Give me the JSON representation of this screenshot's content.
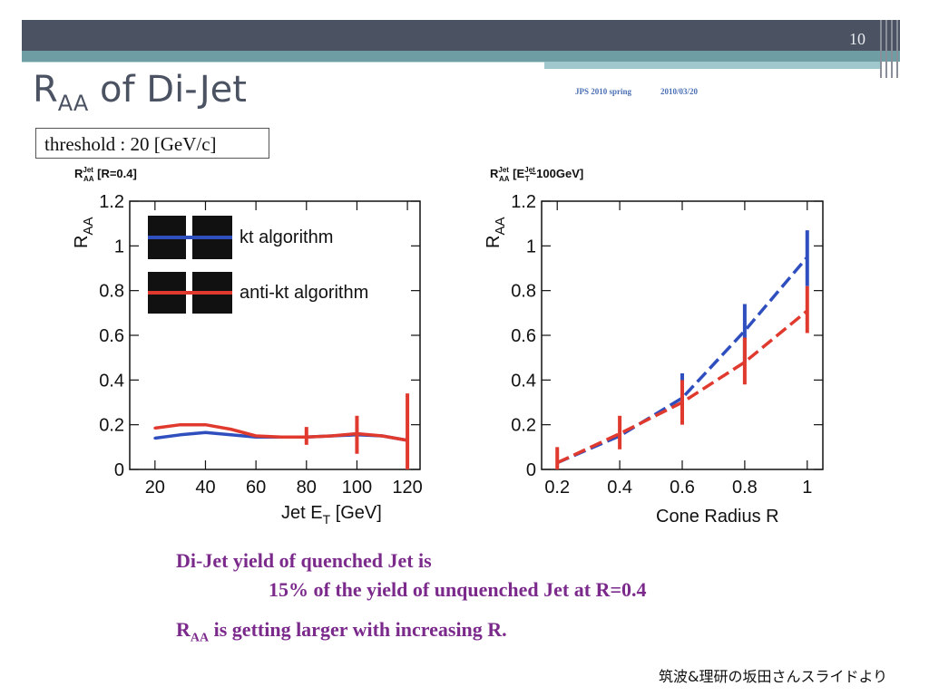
{
  "slide": {
    "number": "10",
    "title_main": "R",
    "title_sub": "AA",
    "title_rest": " of Di-Jet",
    "meta_conf": "JPS 2010 spring",
    "meta_date": "2010/03/20",
    "threshold": "threshold : 20 [GeV/c]",
    "text_line1": "Di-Jet yield of quenched Jet is",
    "text_line2": "15% of the yield of unquenched Jet at R=0.4",
    "text_line3_main": "R",
    "text_line3_sub": "AA",
    "text_line3_rest": "  is getting larger with increasing R.",
    "credit": "筑波&理研の坂田さんスライドより",
    "colors": {
      "kt": "#2f4fbf",
      "antikt": "#e03a2f",
      "accent": "#7b2a8c",
      "band": "#4b5262",
      "teal": "#6e9ea3"
    }
  },
  "chart_data": [
    {
      "type": "line",
      "title_main": "R",
      "title_sup": "Jet",
      "title_sub": "AA",
      "title_rest": " [R=0.4]",
      "ylabel_main": "R",
      "ylabel_sub": "AA",
      "xlabel_main": "Jet E",
      "xlabel_sub": "T",
      "xlabel_rest": " [GeV]",
      "xlim": [
        10,
        125
      ],
      "ylim": [
        0,
        1.2
      ],
      "x_ticks": [
        20,
        40,
        60,
        80,
        100,
        120
      ],
      "y_ticks": [
        0,
        0.2,
        0.4,
        0.6,
        0.8,
        1,
        1.2
      ],
      "y_tick_labels": [
        "0",
        "0.2",
        "0.4",
        "0.6",
        "0.8",
        "1",
        "1.2"
      ],
      "legend": [
        "kt algorithm",
        "anti-kt algorithm"
      ],
      "series": [
        {
          "name": "kt algorithm",
          "x": [
            20,
            30,
            40,
            50,
            60,
            70,
            80,
            90,
            100,
            110,
            120
          ],
          "y": [
            0.14,
            0.155,
            0.165,
            0.155,
            0.145,
            0.145,
            0.145,
            0.15,
            0.155,
            0.15,
            0.13
          ],
          "err": []
        },
        {
          "name": "anti-kt algorithm",
          "x": [
            20,
            30,
            40,
            50,
            60,
            70,
            80,
            90,
            100,
            110,
            120
          ],
          "y": [
            0.185,
            0.2,
            0.2,
            0.18,
            0.15,
            0.145,
            0.145,
            0.15,
            0.16,
            0.15,
            0.13
          ],
          "err": [
            {
              "x": 80,
              "lo": 0.11,
              "hi": 0.19
            },
            {
              "x": 100,
              "lo": 0.07,
              "hi": 0.24
            },
            {
              "x": 120,
              "lo": 0.0,
              "hi": 0.34
            }
          ]
        }
      ]
    },
    {
      "type": "line",
      "title_main": "R",
      "title_sup": "Jet",
      "title_sub": "AA",
      "title_rest": " [E",
      "title_sup2": "Jet",
      "title_sub2": "T",
      "title_rest2": "~100GeV]",
      "ylabel_main": "R",
      "ylabel_sub": "AA",
      "xlabel": "Cone Radius R",
      "xlim": [
        0.15,
        1.05
      ],
      "ylim": [
        0,
        1.2
      ],
      "x_ticks": [
        0.2,
        0.4,
        0.6,
        0.8,
        1
      ],
      "x_tick_labels": [
        "0.2",
        "0.4",
        "0.6",
        "0.8",
        "1"
      ],
      "y_ticks": [
        0,
        0.2,
        0.4,
        0.6,
        0.8,
        1,
        1.2
      ],
      "y_tick_labels": [
        "0",
        "0.2",
        "0.4",
        "0.6",
        "0.8",
        "1",
        "1.2"
      ],
      "series": [
        {
          "name": "kt algorithm",
          "x": [
            0.2,
            0.4,
            0.6,
            0.8,
            1.0
          ],
          "y": [
            0.03,
            0.15,
            0.32,
            0.62,
            0.95
          ],
          "err": [
            {
              "x": 0.6,
              "lo": 0.22,
              "hi": 0.43
            },
            {
              "x": 0.8,
              "lo": 0.48,
              "hi": 0.74
            },
            {
              "x": 1.0,
              "lo": 0.82,
              "hi": 1.07
            }
          ]
        },
        {
          "name": "anti-kt algorithm",
          "x": [
            0.2,
            0.4,
            0.6,
            0.8,
            1.0
          ],
          "y": [
            0.03,
            0.16,
            0.3,
            0.48,
            0.71
          ],
          "err": [
            {
              "x": 0.2,
              "lo": 0.0,
              "hi": 0.1
            },
            {
              "x": 0.4,
              "lo": 0.09,
              "hi": 0.24
            },
            {
              "x": 0.6,
              "lo": 0.2,
              "hi": 0.4
            },
            {
              "x": 0.8,
              "lo": 0.38,
              "hi": 0.59
            },
            {
              "x": 1.0,
              "lo": 0.61,
              "hi": 0.82
            }
          ]
        }
      ]
    }
  ]
}
